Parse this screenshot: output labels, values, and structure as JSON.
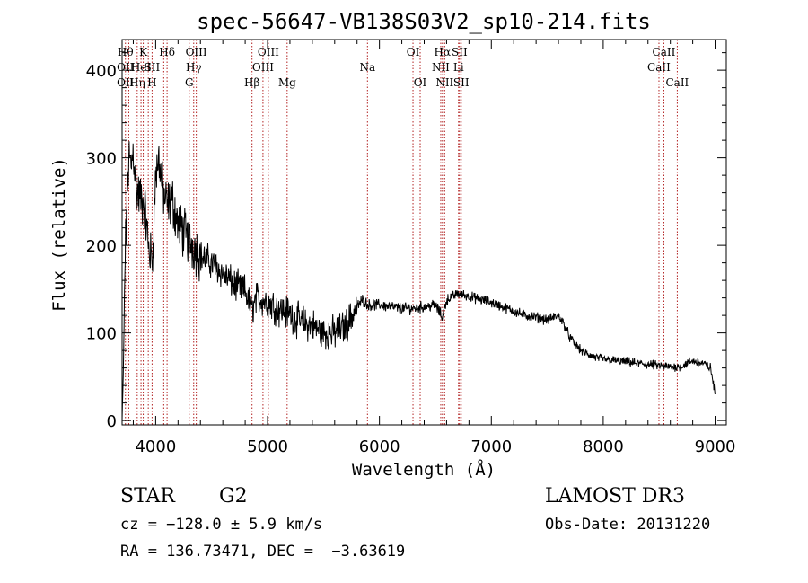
{
  "chart_data": {
    "type": "line",
    "title": "spec-56647-VB138S03V2_sp10-214.fits",
    "xlabel": "Wavelength (Å)",
    "ylabel": "Flux (relative)",
    "xlim": [
      3700,
      9100
    ],
    "ylim": [
      -5,
      435
    ],
    "xticks": [
      4000,
      5000,
      6000,
      7000,
      8000,
      9000
    ],
    "yticks": [
      0,
      100,
      200,
      300,
      400
    ],
    "grid": false,
    "line_color": "#000000",
    "marker_color": "#b22222",
    "spectrum_anchors": [
      [
        3700,
        0
      ],
      [
        3712,
        60
      ],
      [
        3725,
        175
      ],
      [
        3740,
        240
      ],
      [
        3760,
        300
      ],
      [
        3780,
        290
      ],
      [
        3800,
        310
      ],
      [
        3830,
        260
      ],
      [
        3860,
        255
      ],
      [
        3900,
        245
      ],
      [
        3935,
        200
      ],
      [
        3970,
        180
      ],
      [
        4000,
        280
      ],
      [
        4030,
        300
      ],
      [
        4060,
        265
      ],
      [
        4100,
        245
      ],
      [
        4150,
        250
      ],
      [
        4200,
        225
      ],
      [
        4250,
        215
      ],
      [
        4300,
        205
      ],
      [
        4350,
        198
      ],
      [
        4400,
        188
      ],
      [
        4500,
        180
      ],
      [
        4600,
        168
      ],
      [
        4700,
        155
      ],
      [
        4800,
        148
      ],
      [
        4860,
        125
      ],
      [
        4900,
        140
      ],
      [
        5000,
        135
      ],
      [
        5100,
        128
      ],
      [
        5200,
        122
      ],
      [
        5300,
        112
      ],
      [
        5400,
        108
      ],
      [
        5500,
        100
      ],
      [
        5600,
        100
      ],
      [
        5700,
        108
      ],
      [
        5800,
        130
      ],
      [
        5850,
        138
      ],
      [
        5900,
        132
      ],
      [
        6000,
        132
      ],
      [
        6100,
        130
      ],
      [
        6200,
        128
      ],
      [
        6300,
        128
      ],
      [
        6400,
        130
      ],
      [
        6500,
        132
      ],
      [
        6563,
        118
      ],
      [
        6600,
        138
      ],
      [
        6700,
        145
      ],
      [
        6800,
        142
      ],
      [
        6900,
        138
      ],
      [
        7000,
        135
      ],
      [
        7100,
        130
      ],
      [
        7200,
        125
      ],
      [
        7300,
        120
      ],
      [
        7400,
        118
      ],
      [
        7500,
        115
      ],
      [
        7600,
        120
      ],
      [
        7650,
        110
      ],
      [
        7700,
        95
      ],
      [
        7800,
        80
      ],
      [
        7900,
        73
      ],
      [
        8000,
        70
      ],
      [
        8200,
        67
      ],
      [
        8400,
        64
      ],
      [
        8600,
        61
      ],
      [
        8700,
        62
      ],
      [
        8800,
        68
      ],
      [
        8900,
        65
      ],
      [
        8960,
        60
      ],
      [
        9000,
        30
      ]
    ],
    "line_markers": [
      {
        "x": 3730,
        "labels": [
          "Hθ",
          "OII",
          "OII"
        ]
      },
      {
        "x": 3760,
        "labels": [
          "",
          "",
          ""
        ]
      },
      {
        "x": 3835,
        "labels": [
          "",
          "",
          "Hη"
        ]
      },
      {
        "x": 3869,
        "labels": [
          "",
          "HeI",
          ""
        ]
      },
      {
        "x": 3889,
        "labels": [
          "K",
          "",
          ""
        ]
      },
      {
        "x": 3934,
        "labels": [
          "",
          "",
          ""
        ]
      },
      {
        "x": 3968,
        "labels": [
          "",
          "SII",
          "H"
        ]
      },
      {
        "x": 4072,
        "labels": [
          "",
          "",
          ""
        ]
      },
      {
        "x": 4102,
        "labels": [
          "Hδ",
          "",
          ""
        ]
      },
      {
        "x": 4300,
        "labels": [
          "",
          "",
          "G"
        ]
      },
      {
        "x": 4340,
        "labels": [
          "",
          "Hγ",
          ""
        ]
      },
      {
        "x": 4363,
        "labels": [
          "OIII",
          "",
          ""
        ]
      },
      {
        "x": 4861,
        "labels": [
          "",
          "",
          "Hβ"
        ]
      },
      {
        "x": 4959,
        "labels": [
          "",
          "OIII",
          ""
        ]
      },
      {
        "x": 5007,
        "labels": [
          "OIII",
          "",
          ""
        ]
      },
      {
        "x": 5175,
        "labels": [
          "",
          "",
          "Mg"
        ]
      },
      {
        "x": 5893,
        "labels": [
          "",
          "Na",
          ""
        ]
      },
      {
        "x": 6300,
        "labels": [
          "OI",
          "",
          ""
        ]
      },
      {
        "x": 6364,
        "labels": [
          "",
          "",
          "OI"
        ]
      },
      {
        "x": 6548,
        "labels": [
          "",
          "NII",
          ""
        ]
      },
      {
        "x": 6563,
        "labels": [
          "Hα",
          "",
          ""
        ]
      },
      {
        "x": 6583,
        "labels": [
          "",
          "",
          "NII"
        ]
      },
      {
        "x": 6707,
        "labels": [
          "",
          "Li",
          ""
        ]
      },
      {
        "x": 6716,
        "labels": [
          "SII",
          "",
          ""
        ]
      },
      {
        "x": 6731,
        "labels": [
          "",
          "",
          "SII"
        ]
      },
      {
        "x": 8498,
        "labels": [
          "",
          "CaII",
          ""
        ]
      },
      {
        "x": 8542,
        "labels": [
          "CaII",
          "",
          ""
        ]
      },
      {
        "x": 8662,
        "labels": [
          "",
          "",
          "CaII"
        ]
      }
    ]
  },
  "footer": {
    "class_label": "STAR",
    "subclass_label": "G2",
    "survey": "LAMOST DR3",
    "redshift_line": "cz = −128.0 ± 5.9 km/s",
    "obs_date": "Obs-Date: 20131220",
    "coords_line": "RA = 136.73471, DEC =  −3.63619"
  }
}
